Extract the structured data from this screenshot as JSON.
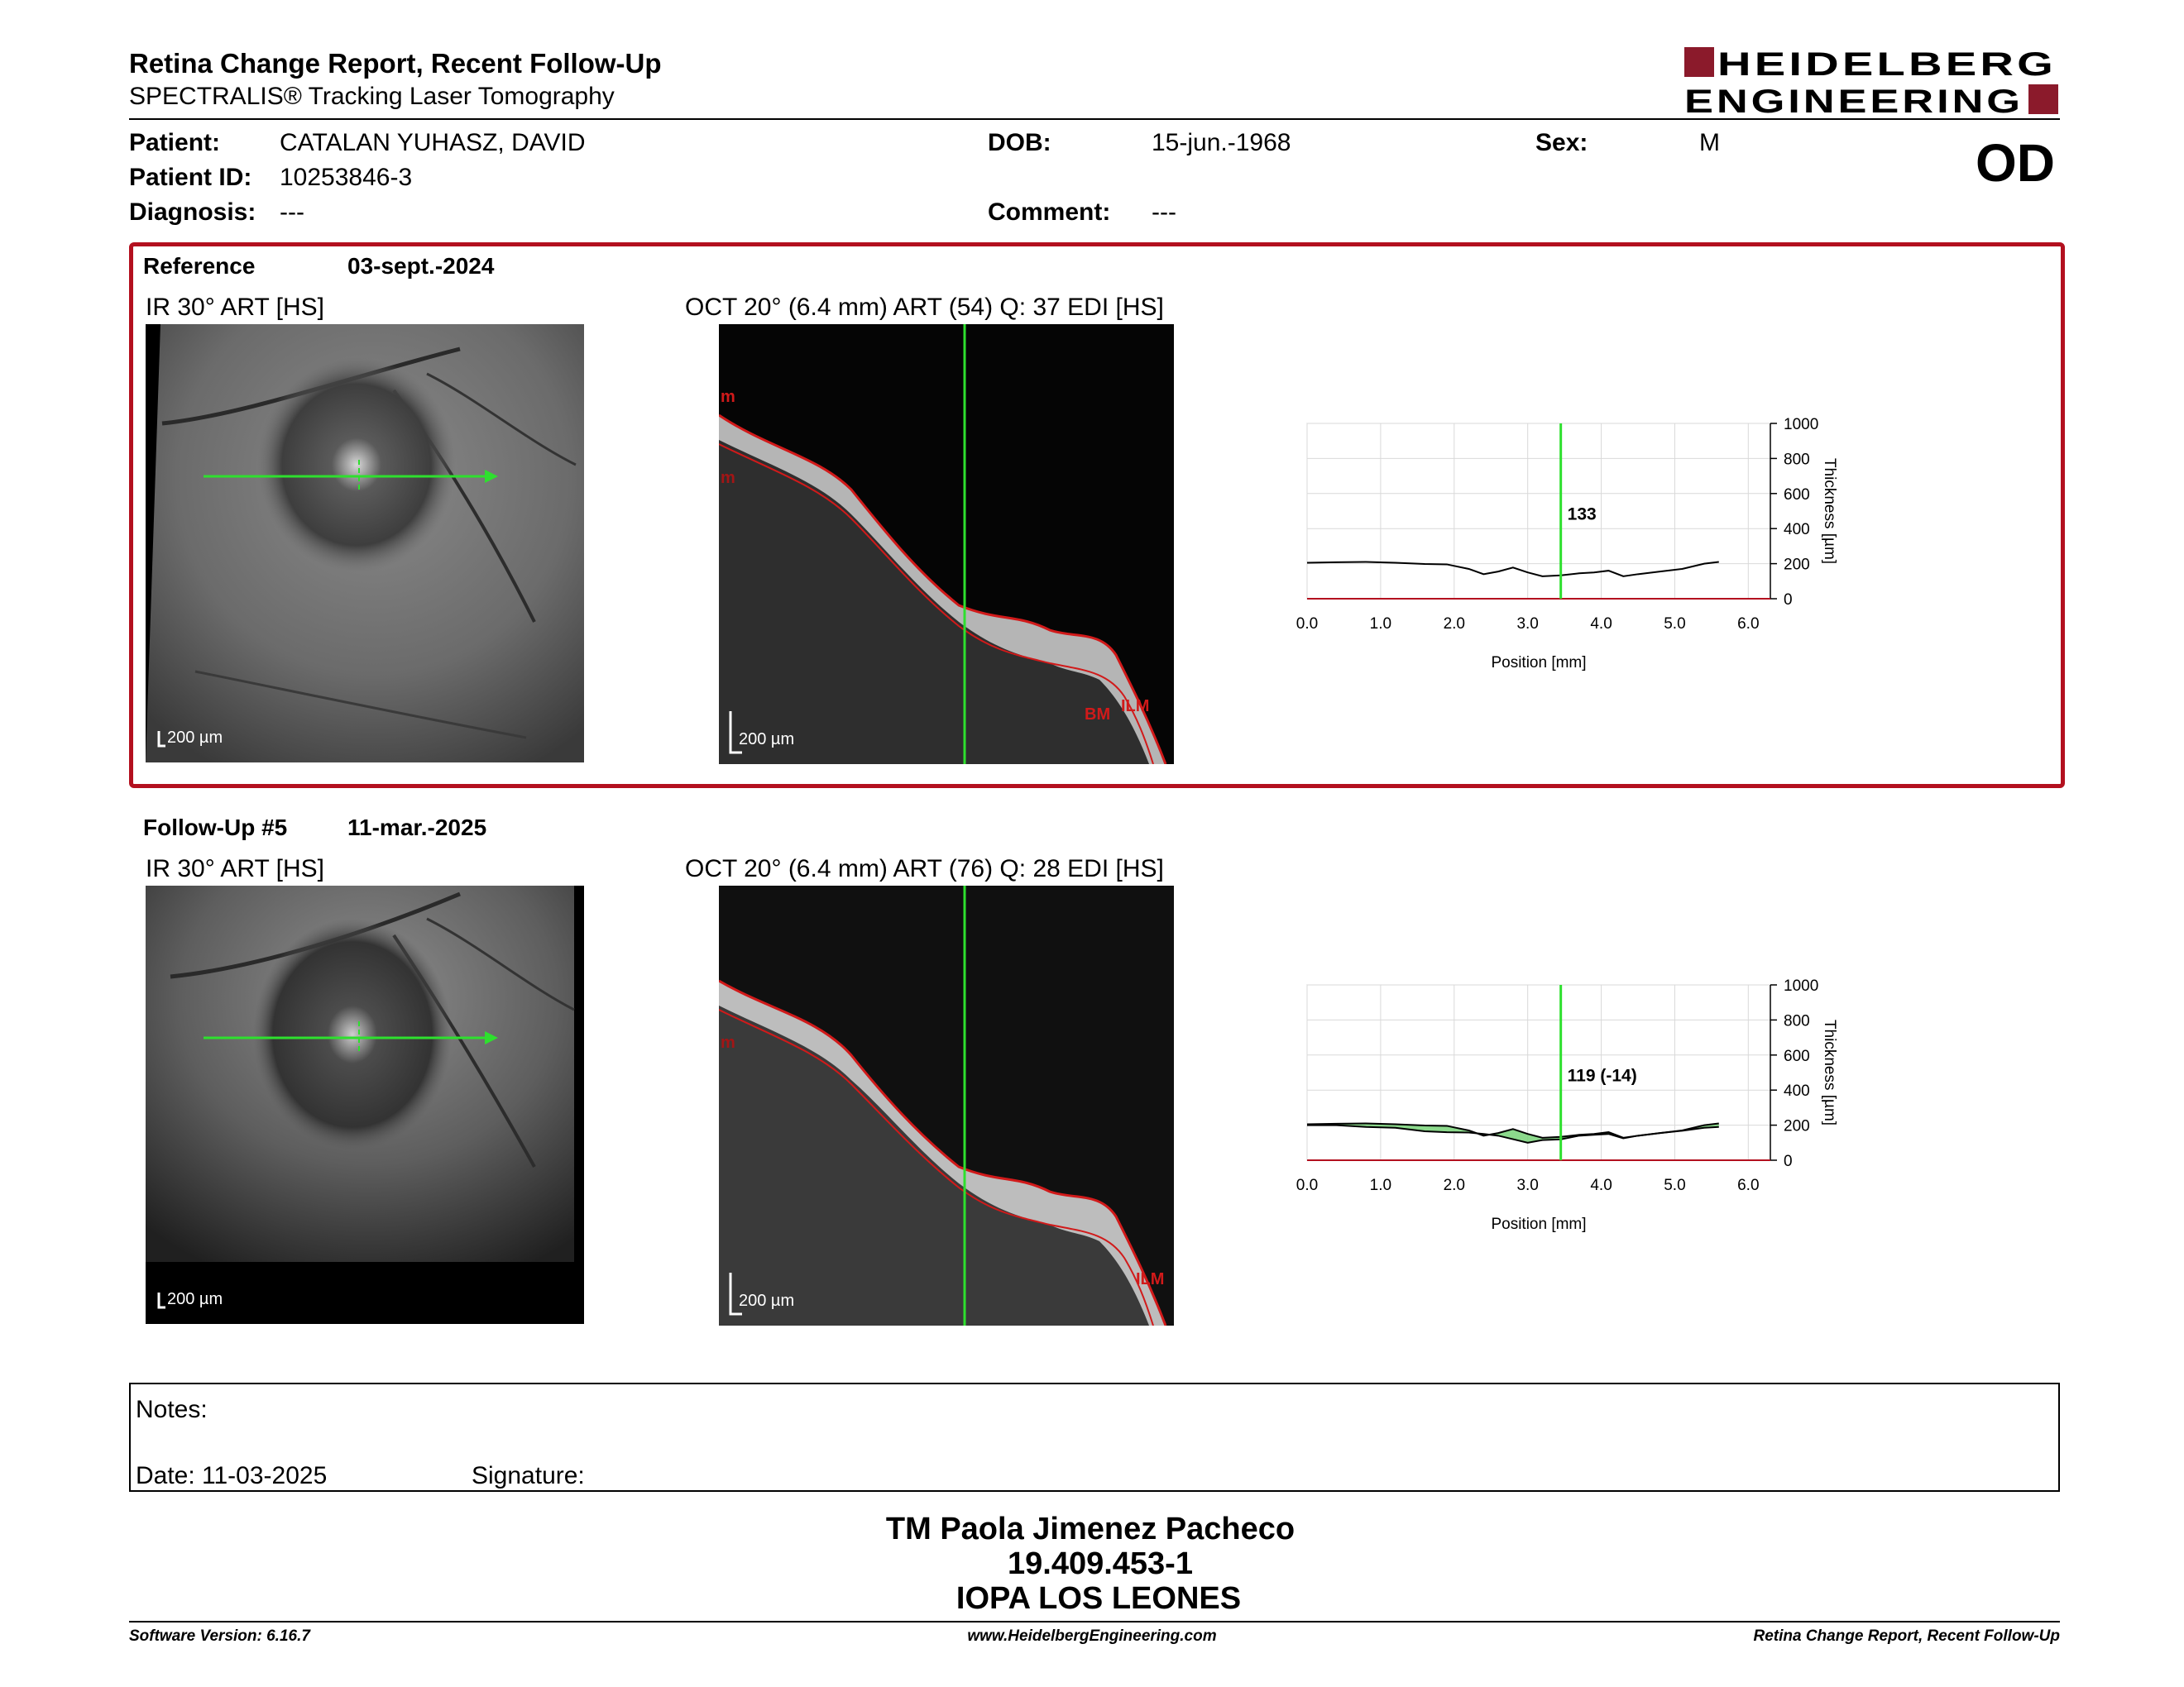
{
  "header": {
    "title": "Retina Change Report, Recent Follow-Up",
    "subtitle": "SPECTRALIS® Tracking Laser Tomography",
    "eye": "OD",
    "logo_line1": "HEIDELBERG",
    "logo_line2": "ENGINEERING",
    "brand_color": "#8b1a2b"
  },
  "patient": {
    "name_label": "Patient:",
    "name": "CATALAN YUHASZ, DAVID",
    "id_label": "Patient ID:",
    "id": "10253846-3",
    "diagnosis_label": "Diagnosis:",
    "diagnosis": "---",
    "dob_label": "DOB:",
    "dob": "15-jun.-1968",
    "comment_label": "Comment:",
    "comment": "---",
    "sex_label": "Sex:",
    "sex": "M"
  },
  "reference": {
    "label": "Reference",
    "date": "03-sept.-2024",
    "ir_label": "IR 30° ART [HS]",
    "oct_label": "OCT 20° (6.4 mm) ART (54) Q: 37 EDI [HS]",
    "scale": "200 µm",
    "layer_labels": [
      "m",
      "m",
      "BM",
      "ILM"
    ],
    "chart_value": "133",
    "accent_color": "#b3101f"
  },
  "followup": {
    "label": "Follow-Up #5",
    "date": "11-mar.-2025",
    "ir_label": "IR 30° ART [HS]",
    "oct_label": "OCT 20° (6.4 mm) ART (76) Q: 28 EDI [HS]",
    "scale": "200 µm",
    "layer_labels": [
      "m",
      "ILM"
    ],
    "chart_value": "119 (-14)"
  },
  "chart_data": [
    {
      "type": "line",
      "xlabel": "Position [mm]",
      "ylabel": "Thickness [µm]",
      "xlim": [
        0,
        6.3
      ],
      "ylim": [
        0,
        1000
      ],
      "x_ticks": [
        "0.0",
        "1.0",
        "2.0",
        "3.0",
        "4.0",
        "5.0",
        "6.0"
      ],
      "y_ticks": [
        "0",
        "200",
        "400",
        "600",
        "800",
        "1000"
      ],
      "grid": true,
      "marker_x": 3.45,
      "series": [
        {
          "x": [
            0,
            0.4,
            0.8,
            1.2,
            1.6,
            1.9,
            2.2,
            2.4,
            2.6,
            2.8,
            3.0,
            3.2,
            3.45,
            3.7,
            3.9,
            4.1,
            4.3,
            4.5,
            4.8,
            5.1,
            5.4,
            5.6
          ],
          "values": [
            205,
            208,
            210,
            205,
            198,
            196,
            170,
            140,
            155,
            178,
            150,
            128,
            133,
            145,
            150,
            160,
            128,
            140,
            155,
            170,
            200,
            210
          ]
        }
      ]
    },
    {
      "type": "line",
      "xlabel": "Position [mm]",
      "ylabel": "Thickness [µm]",
      "xlim": [
        0,
        6.3
      ],
      "ylim": [
        0,
        1000
      ],
      "x_ticks": [
        "0.0",
        "1.0",
        "2.0",
        "3.0",
        "4.0",
        "5.0",
        "6.0"
      ],
      "y_ticks": [
        "0",
        "200",
        "400",
        "600",
        "800",
        "1000"
      ],
      "grid": true,
      "marker_x": 3.45,
      "series": [
        {
          "x": [
            0,
            0.4,
            0.8,
            1.2,
            1.6,
            1.9,
            2.2,
            2.4,
            2.6,
            2.8,
            3.0,
            3.2,
            3.45,
            3.7,
            3.9,
            4.1,
            4.3,
            4.5,
            4.8,
            5.1,
            5.4,
            5.6
          ],
          "values": [
            205,
            208,
            210,
            205,
            198,
            196,
            170,
            140,
            155,
            178,
            150,
            128,
            133,
            145,
            150,
            160,
            128,
            140,
            155,
            170,
            200,
            210
          ]
        },
        {
          "x": [
            0,
            0.4,
            0.8,
            1.2,
            1.6,
            1.9,
            2.2,
            2.4,
            2.6,
            2.8,
            3.0,
            3.2,
            3.45,
            3.7,
            3.9,
            4.1,
            4.3,
            4.5,
            4.8,
            5.1,
            5.4,
            5.6
          ],
          "values": [
            200,
            200,
            190,
            185,
            165,
            160,
            158,
            150,
            140,
            120,
            100,
            115,
            119,
            140,
            145,
            150,
            125,
            140,
            155,
            168,
            185,
            190
          ]
        }
      ]
    }
  ],
  "notes": {
    "label": "Notes:",
    "date_text": "Date: 11-03-2025",
    "signature_label": "Signature:"
  },
  "signatory": {
    "name": "TM Paola Jimenez Pacheco",
    "rut": "19.409.453-1",
    "institution": "IOPA LOS LEONES"
  },
  "footer": {
    "version": "Software Version: 6.16.7",
    "website": "www.HeidelbergEngineering.com",
    "report": "Retina Change Report, Recent Follow-Up"
  }
}
